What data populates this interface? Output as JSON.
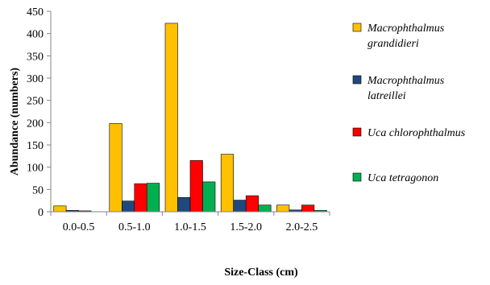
{
  "chart_data": {
    "type": "bar",
    "title": "",
    "xlabel": "Size-Class (cm)",
    "ylabel": "Abundance (numbers)",
    "ylim": [
      0,
      450
    ],
    "yticks": [
      0,
      50,
      100,
      150,
      200,
      250,
      300,
      350,
      400,
      450
    ],
    "categories": [
      "0.0-0.5",
      "0.5-1.0",
      "1.0-1.5",
      "1.5-2.0",
      "2.0-2.5"
    ],
    "series": [
      {
        "name": "Macrophthalmus grandidieri",
        "legend_lines": [
          "Macrophthalmus",
          "grandidieri"
        ],
        "color": "#FFC000",
        "values": [
          13,
          198,
          423,
          129,
          15
        ]
      },
      {
        "name": "Macrophthalmus latreillei",
        "legend_lines": [
          "Macrophthalmus",
          "latreillei"
        ],
        "color": "#1F497D",
        "values": [
          3,
          24,
          32,
          26,
          4
        ]
      },
      {
        "name": "Uca chlorophthalmus",
        "legend_lines": [
          "Uca chlorophthalmus"
        ],
        "color": "#FF0000",
        "values": [
          2,
          63,
          115,
          36,
          15
        ]
      },
      {
        "name": "Uca tetragonon",
        "legend_lines": [
          "Uca tetragonon"
        ],
        "color": "#00B050",
        "values": [
          0,
          64,
          67,
          15,
          3
        ]
      }
    ],
    "grid": false,
    "legend_position": "right"
  }
}
